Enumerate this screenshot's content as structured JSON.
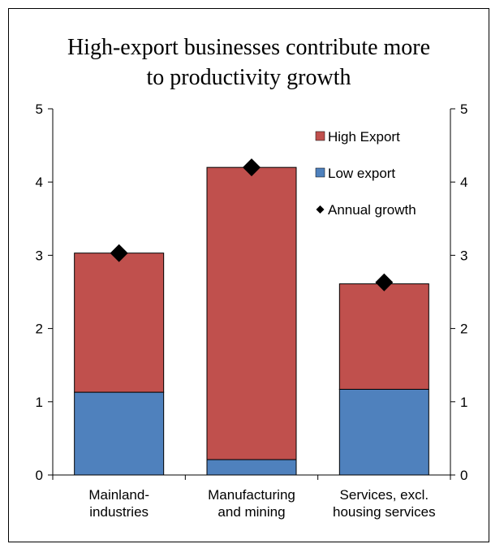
{
  "chart_data": {
    "type": "bar",
    "stacked": true,
    "title": [
      "High-export businesses contribute more",
      "to productivity growth"
    ],
    "categories": [
      [
        "Mainland-",
        "industries"
      ],
      [
        "Manufacturing",
        "and mining"
      ],
      [
        "Services, excl.",
        "housing services"
      ]
    ],
    "series": [
      {
        "name": "Low export",
        "type": "bar",
        "values": [
          1.13,
          0.21,
          1.17
        ],
        "color": "#4f81bd"
      },
      {
        "name": "High Export",
        "type": "bar",
        "values": [
          1.9,
          3.99,
          1.44
        ],
        "color": "#c0504d"
      },
      {
        "name": "Annual growth",
        "type": "marker",
        "marker": "diamond",
        "values": [
          3.03,
          4.2,
          2.63
        ],
        "color": "#000000"
      }
    ],
    "legend_order": [
      "High Export",
      "Low export",
      "Annual growth"
    ],
    "ylim": [
      0,
      5
    ],
    "yticks": [
      0,
      1,
      2,
      3,
      4,
      5
    ],
    "secondary_yaxis": true,
    "grid": false,
    "legend_position": "top-right"
  }
}
